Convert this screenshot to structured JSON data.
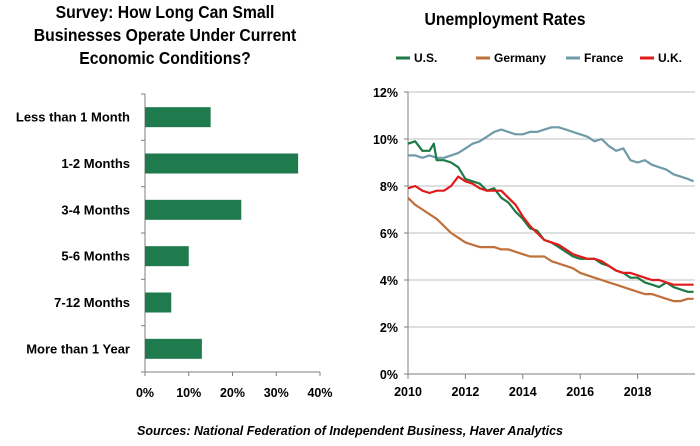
{
  "chart_data": [
    {
      "type": "bar",
      "orientation": "horizontal",
      "title": "Survey: How Long Can Small Businesses Operate Under Current Economic Conditions?",
      "categories": [
        "Less than 1 Month",
        "1-2 Months",
        "3-4 Months",
        "5-6 Months",
        "7-12 Months",
        "More than 1 Year"
      ],
      "values": [
        15,
        35,
        22,
        10,
        6,
        13
      ],
      "x_ticks": [
        "0%",
        "10%",
        "20%",
        "30%",
        "40%"
      ],
      "xlim": [
        0,
        40
      ],
      "color": "#1f7a4d",
      "grid": false
    },
    {
      "type": "line",
      "title": "Unemployment Rates",
      "y_ticks": [
        "0%",
        "2%",
        "4%",
        "6%",
        "8%",
        "10%",
        "12%"
      ],
      "ylim": [
        0,
        12
      ],
      "x_ticks": [
        "2010",
        "2012",
        "2014",
        "2016",
        "2018"
      ],
      "xlim": [
        2010,
        2020
      ],
      "legend_position": "top",
      "grid": "horizontal",
      "series": [
        {
          "name": "U.S.",
          "color": "#1b7a46",
          "points": [
            [
              2010.0,
              9.8
            ],
            [
              2010.25,
              9.9
            ],
            [
              2010.5,
              9.5
            ],
            [
              2010.75,
              9.5
            ],
            [
              2010.9,
              9.8
            ],
            [
              2011.0,
              9.1
            ],
            [
              2011.25,
              9.1
            ],
            [
              2011.5,
              9.0
            ],
            [
              2011.75,
              8.8
            ],
            [
              2012.0,
              8.3
            ],
            [
              2012.25,
              8.2
            ],
            [
              2012.5,
              8.1
            ],
            [
              2012.75,
              7.8
            ],
            [
              2013.0,
              7.9
            ],
            [
              2013.25,
              7.5
            ],
            [
              2013.5,
              7.3
            ],
            [
              2013.75,
              6.9
            ],
            [
              2014.0,
              6.6
            ],
            [
              2014.25,
              6.2
            ],
            [
              2014.5,
              6.1
            ],
            [
              2014.75,
              5.7
            ],
            [
              2015.0,
              5.6
            ],
            [
              2015.25,
              5.4
            ],
            [
              2015.5,
              5.2
            ],
            [
              2015.75,
              5.0
            ],
            [
              2016.0,
              4.9
            ],
            [
              2016.25,
              4.9
            ],
            [
              2016.5,
              4.9
            ],
            [
              2016.75,
              4.7
            ],
            [
              2017.0,
              4.6
            ],
            [
              2017.25,
              4.4
            ],
            [
              2017.5,
              4.3
            ],
            [
              2017.75,
              4.1
            ],
            [
              2018.0,
              4.1
            ],
            [
              2018.25,
              3.9
            ],
            [
              2018.5,
              3.8
            ],
            [
              2018.75,
              3.7
            ],
            [
              2019.0,
              3.9
            ],
            [
              2019.25,
              3.7
            ],
            [
              2019.5,
              3.6
            ],
            [
              2019.75,
              3.5
            ],
            [
              2019.95,
              3.5
            ]
          ]
        },
        {
          "name": "Germany",
          "color": "#c0703a",
          "points": [
            [
              2010.0,
              7.5
            ],
            [
              2010.25,
              7.2
            ],
            [
              2010.5,
              7.0
            ],
            [
              2010.75,
              6.8
            ],
            [
              2011.0,
              6.6
            ],
            [
              2011.25,
              6.3
            ],
            [
              2011.5,
              6.0
            ],
            [
              2011.75,
              5.8
            ],
            [
              2012.0,
              5.6
            ],
            [
              2012.25,
              5.5
            ],
            [
              2012.5,
              5.4
            ],
            [
              2012.75,
              5.4
            ],
            [
              2013.0,
              5.4
            ],
            [
              2013.25,
              5.3
            ],
            [
              2013.5,
              5.3
            ],
            [
              2013.75,
              5.2
            ],
            [
              2014.0,
              5.1
            ],
            [
              2014.25,
              5.0
            ],
            [
              2014.5,
              5.0
            ],
            [
              2014.75,
              5.0
            ],
            [
              2015.0,
              4.8
            ],
            [
              2015.25,
              4.7
            ],
            [
              2015.5,
              4.6
            ],
            [
              2015.75,
              4.5
            ],
            [
              2016.0,
              4.3
            ],
            [
              2016.25,
              4.2
            ],
            [
              2016.5,
              4.1
            ],
            [
              2016.75,
              4.0
            ],
            [
              2017.0,
              3.9
            ],
            [
              2017.25,
              3.8
            ],
            [
              2017.5,
              3.7
            ],
            [
              2017.75,
              3.6
            ],
            [
              2018.0,
              3.5
            ],
            [
              2018.25,
              3.4
            ],
            [
              2018.5,
              3.4
            ],
            [
              2018.75,
              3.3
            ],
            [
              2019.0,
              3.2
            ],
            [
              2019.25,
              3.1
            ],
            [
              2019.5,
              3.1
            ],
            [
              2019.75,
              3.2
            ],
            [
              2019.95,
              3.2
            ]
          ]
        },
        {
          "name": "France",
          "color": "#6f9aa8",
          "points": [
            [
              2010.0,
              9.3
            ],
            [
              2010.25,
              9.3
            ],
            [
              2010.5,
              9.2
            ],
            [
              2010.75,
              9.3
            ],
            [
              2011.0,
              9.2
            ],
            [
              2011.25,
              9.2
            ],
            [
              2011.5,
              9.3
            ],
            [
              2011.75,
              9.4
            ],
            [
              2012.0,
              9.6
            ],
            [
              2012.25,
              9.8
            ],
            [
              2012.5,
              9.9
            ],
            [
              2012.75,
              10.1
            ],
            [
              2013.0,
              10.3
            ],
            [
              2013.25,
              10.4
            ],
            [
              2013.5,
              10.3
            ],
            [
              2013.75,
              10.2
            ],
            [
              2014.0,
              10.2
            ],
            [
              2014.25,
              10.3
            ],
            [
              2014.5,
              10.3
            ],
            [
              2014.75,
              10.4
            ],
            [
              2015.0,
              10.5
            ],
            [
              2015.25,
              10.5
            ],
            [
              2015.5,
              10.4
            ],
            [
              2015.75,
              10.3
            ],
            [
              2016.0,
              10.2
            ],
            [
              2016.25,
              10.1
            ],
            [
              2016.5,
              9.9
            ],
            [
              2016.75,
              10.0
            ],
            [
              2017.0,
              9.7
            ],
            [
              2017.25,
              9.5
            ],
            [
              2017.5,
              9.6
            ],
            [
              2017.75,
              9.1
            ],
            [
              2018.0,
              9.0
            ],
            [
              2018.25,
              9.1
            ],
            [
              2018.5,
              8.9
            ],
            [
              2018.75,
              8.8
            ],
            [
              2019.0,
              8.7
            ],
            [
              2019.25,
              8.5
            ],
            [
              2019.5,
              8.4
            ],
            [
              2019.75,
              8.3
            ],
            [
              2019.95,
              8.2
            ]
          ]
        },
        {
          "name": "U.K.",
          "color": "#e01b1b",
          "points": [
            [
              2010.0,
              7.9
            ],
            [
              2010.25,
              8.0
            ],
            [
              2010.5,
              7.8
            ],
            [
              2010.75,
              7.7
            ],
            [
              2011.0,
              7.8
            ],
            [
              2011.25,
              7.8
            ],
            [
              2011.5,
              8.0
            ],
            [
              2011.75,
              8.4
            ],
            [
              2012.0,
              8.2
            ],
            [
              2012.25,
              8.1
            ],
            [
              2012.5,
              7.9
            ],
            [
              2012.75,
              7.8
            ],
            [
              2013.0,
              7.8
            ],
            [
              2013.25,
              7.8
            ],
            [
              2013.5,
              7.5
            ],
            [
              2013.75,
              7.2
            ],
            [
              2014.0,
              6.7
            ],
            [
              2014.25,
              6.3
            ],
            [
              2014.5,
              6.0
            ],
            [
              2014.75,
              5.7
            ],
            [
              2015.0,
              5.6
            ],
            [
              2015.25,
              5.5
            ],
            [
              2015.5,
              5.3
            ],
            [
              2015.75,
              5.1
            ],
            [
              2016.0,
              5.0
            ],
            [
              2016.25,
              4.9
            ],
            [
              2016.5,
              4.9
            ],
            [
              2016.75,
              4.8
            ],
            [
              2017.0,
              4.6
            ],
            [
              2017.25,
              4.4
            ],
            [
              2017.5,
              4.3
            ],
            [
              2017.75,
              4.3
            ],
            [
              2018.0,
              4.2
            ],
            [
              2018.25,
              4.1
            ],
            [
              2018.5,
              4.0
            ],
            [
              2018.75,
              4.0
            ],
            [
              2019.0,
              3.9
            ],
            [
              2019.25,
              3.8
            ],
            [
              2019.5,
              3.8
            ],
            [
              2019.75,
              3.8
            ],
            [
              2019.95,
              3.8
            ]
          ]
        }
      ]
    }
  ],
  "source": "Sources: National Federation of Independent Business, Haver Analytics"
}
